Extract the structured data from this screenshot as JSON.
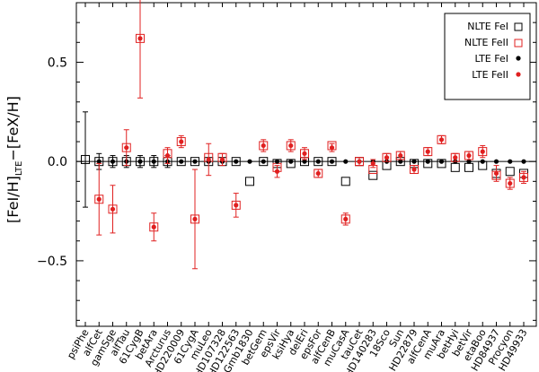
{
  "chart_data": {
    "type": "scatter",
    "title": "",
    "xlabel": "",
    "ylabel": {
      "part1": "[FeI/H]",
      "sub": "LTE",
      "part2": "−[FeX/H]"
    },
    "ylim": [
      -0.83,
      0.8
    ],
    "yticks": [
      0.5,
      0.0,
      -0.5
    ],
    "ytick_labels": [
      "0.5",
      "0.0",
      "−0.5"
    ],
    "categories": [
      "psiPhe",
      "alfCet",
      "gamSge",
      "alfTau",
      "61CygB",
      "betAra",
      "Arcturus",
      "HD220009",
      "61CygA",
      "muLeo",
      "HD107328",
      "HD122563",
      "Gmb1830",
      "betGem",
      "epsVir",
      "ksiHya",
      "delEri",
      "epsFor",
      "alfCenB",
      "muCasA",
      "tauCet",
      "HD140283",
      "18Sco",
      "Sun",
      "HD22879",
      "alfCenA",
      "muAra",
      "betHyi",
      "betVir",
      "etaBoo",
      "HD84937",
      "Procyon",
      "HD49933"
    ],
    "series": [
      {
        "name": "NLTE FeI",
        "marker": "open-square",
        "color": "#000000",
        "values": [
          0.01,
          0.0,
          0.0,
          0.0,
          0.0,
          0.0,
          0.0,
          0.0,
          0.0,
          0.0,
          0.0,
          0.0,
          -0.1,
          0.0,
          -0.01,
          -0.01,
          0.0,
          0.0,
          0.0,
          -0.1,
          0.0,
          -0.07,
          -0.02,
          0.0,
          -0.01,
          -0.01,
          -0.01,
          -0.03,
          -0.03,
          -0.02,
          -0.06,
          -0.05,
          -0.06
        ],
        "errors": [
          0.24,
          0.04,
          0.03,
          0.03,
          0.03,
          0.03,
          0.03,
          0.0,
          0.0,
          0.0,
          0.0,
          0.0,
          0.0,
          0.0,
          0.0,
          0.0,
          0.0,
          0.0,
          0.0,
          0.0,
          0.0,
          0.0,
          0.0,
          0.0,
          0.0,
          0.0,
          0.0,
          0.0,
          0.0,
          0.0,
          0.0,
          0.0,
          0.0
        ]
      },
      {
        "name": "NLTE FeII",
        "marker": "open-square",
        "color": "#e02020",
        "values": [
          null,
          -0.19,
          -0.24,
          0.07,
          0.62,
          -0.33,
          0.04,
          0.1,
          -0.29,
          0.02,
          0.02,
          -0.22,
          null,
          0.08,
          -0.03,
          0.08,
          0.04,
          -0.06,
          0.08,
          -0.29,
          0.0,
          -0.04,
          0.02,
          0.03,
          -0.04,
          0.05,
          0.11,
          0.02,
          0.03,
          0.05,
          -0.07,
          -0.11,
          -0.08
        ],
        "errors": [
          0.0,
          0.0,
          0.0,
          0.0,
          0.0,
          0.0,
          0.0,
          0.0,
          0.0,
          0.0,
          0.0,
          0.0,
          0.0,
          0.0,
          0.0,
          0.0,
          0.0,
          0.0,
          0.0,
          0.0,
          0.0,
          0.0,
          0.0,
          0.0,
          0.0,
          0.0,
          0.0,
          0.0,
          0.0,
          0.0,
          0.0,
          0.0,
          0.0
        ]
      },
      {
        "name": "LTE FeI",
        "marker": "filled-circle",
        "color": "#000000",
        "values": [
          null,
          0.0,
          0.0,
          0.0,
          0.0,
          0.0,
          0.0,
          0.0,
          0.0,
          0.0,
          0.0,
          0.0,
          0.0,
          0.0,
          0.0,
          0.0,
          0.0,
          0.0,
          0.0,
          0.0,
          0.0,
          0.0,
          0.0,
          0.0,
          0.0,
          0.0,
          0.0,
          0.0,
          0.0,
          0.0,
          0.0,
          0.0,
          0.0
        ],
        "errors": [
          0.0,
          0.0,
          0.0,
          0.0,
          0.0,
          0.0,
          0.0,
          0.0,
          0.0,
          0.0,
          0.0,
          0.0,
          0.0,
          0.0,
          0.0,
          0.0,
          0.0,
          0.0,
          0.0,
          0.0,
          0.0,
          0.0,
          0.0,
          0.0,
          0.0,
          0.0,
          0.0,
          0.0,
          0.0,
          0.0,
          0.0,
          0.0,
          0.0
        ]
      },
      {
        "name": "LTE FeII",
        "marker": "filled-circle",
        "color": "#e02020",
        "values": [
          null,
          -0.19,
          -0.24,
          0.07,
          0.62,
          -0.33,
          0.03,
          0.1,
          -0.29,
          0.01,
          0.01,
          -0.22,
          null,
          0.08,
          -0.05,
          0.08,
          0.04,
          -0.06,
          0.07,
          -0.29,
          0.0,
          -0.01,
          0.02,
          0.03,
          -0.04,
          0.05,
          0.11,
          0.02,
          0.03,
          0.05,
          -0.06,
          -0.11,
          -0.08
        ],
        "errors": [
          0.0,
          0.18,
          0.12,
          0.09,
          0.3,
          0.07,
          0.04,
          0.03,
          0.25,
          0.08,
          0.03,
          0.06,
          0.0,
          0.03,
          0.03,
          0.03,
          0.03,
          0.02,
          0.02,
          0.03,
          0.02,
          0.02,
          0.02,
          0.02,
          0.02,
          0.02,
          0.02,
          0.02,
          0.02,
          0.03,
          0.04,
          0.03,
          0.03
        ]
      }
    ],
    "zero_line": 0.0,
    "legend_position": "top-right",
    "legend": [
      "NLTE FeI",
      "NLTE FeII",
      "LTE FeI",
      "LTE FeII"
    ]
  }
}
